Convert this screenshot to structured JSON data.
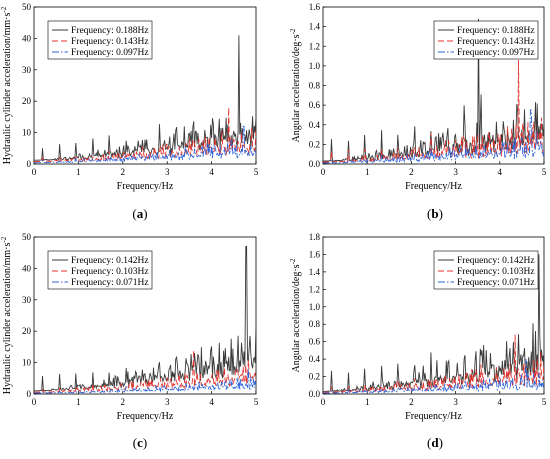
{
  "chart_data": [
    {
      "panel": "(a)",
      "panel_letter": "a",
      "type": "line",
      "xlabel": "Frequency/Hz",
      "ylabel": "Hydraulic cylinder acceleration/mm·s",
      "ylabel_sup": "-2",
      "xlim": [
        0,
        5
      ],
      "ylim": [
        0,
        50
      ],
      "xticks": [
        0,
        1,
        2,
        3,
        4,
        5
      ],
      "yticks": [
        0,
        10,
        20,
        30,
        40,
        50
      ],
      "legend_position": "top-left",
      "series": [
        {
          "name": "Frequency: 0.188Hz",
          "color": "#3a3a3a",
          "dash": "solid",
          "seed": 11,
          "base": 1.2,
          "growth": 7,
          "noise": 10,
          "peakAmp": 0.55,
          "peakX": 4.62,
          "peakY": 41
        },
        {
          "name": "Frequency: 0.143Hz",
          "color": "#e0312b",
          "dash": "6,3",
          "seed": 23,
          "base": 0.8,
          "growth": 4,
          "noise": 7,
          "peakAmp": 0.3,
          "peakX": 4.38,
          "peakY": 18
        },
        {
          "name": "Frequency: 0.097Hz",
          "color": "#2d63d8",
          "dash": "7,2,1.5,2",
          "seed": 37,
          "base": 0.4,
          "growth": 3,
          "noise": 5,
          "peakAmp": 0.2,
          "peakX": 4.72,
          "peakY": 12
        }
      ]
    },
    {
      "panel": "(b)",
      "panel_letter": "b",
      "type": "line",
      "xlabel": "Frequency/Hz",
      "ylabel": "Angular acceleration/deg·s",
      "ylabel_sup": "-2",
      "xlim": [
        0,
        5
      ],
      "ylim": [
        0,
        1.6
      ],
      "xticks": [
        0,
        1,
        2,
        3,
        4,
        5
      ],
      "yticks": [
        0.0,
        0.2,
        0.4,
        0.6,
        0.8,
        1.0,
        1.2,
        1.4,
        1.6
      ],
      "legend_position": "top-right",
      "series": [
        {
          "name": "Frequency: 0.188Hz",
          "color": "#3a3a3a",
          "dash": "solid",
          "seed": 53,
          "base": 0.03,
          "growth": 0.2,
          "noise": 0.45,
          "peakAmp": 1.0,
          "peakX": 3.52,
          "peakY": 1.48
        },
        {
          "name": "Frequency: 0.143Hz",
          "color": "#e0312b",
          "dash": "6,3",
          "seed": 61,
          "base": 0.02,
          "growth": 0.14,
          "noise": 0.3,
          "peakAmp": 0.55,
          "peakX": 4.42,
          "peakY": 1.06
        },
        {
          "name": "Frequency: 0.097Hz",
          "color": "#2d63d8",
          "dash": "7,2,1.5,2",
          "seed": 71,
          "base": 0.01,
          "growth": 0.1,
          "noise": 0.2,
          "peakAmp": 0.28,
          "peakX": 4.7,
          "peakY": 0.55
        }
      ]
    },
    {
      "panel": "(c)",
      "panel_letter": "c",
      "type": "line",
      "xlabel": "Frequency/Hz",
      "ylabel": "Hydraulic cylinder acceleration/mm·s",
      "ylabel_sup": "-2",
      "xlim": [
        0,
        5
      ],
      "ylim": [
        0,
        50
      ],
      "xticks": [
        0,
        1,
        2,
        3,
        4,
        5
      ],
      "yticks": [
        0,
        10,
        20,
        30,
        40,
        50
      ],
      "legend_position": "top-left",
      "series": [
        {
          "name": "Frequency: 0.142Hz",
          "color": "#3a3a3a",
          "dash": "solid",
          "seed": 83,
          "base": 1.0,
          "growth": 9,
          "noise": 11,
          "peakAmp": 0.45,
          "peakX": 4.78,
          "peakY": 47
        },
        {
          "name": "Frequency: 0.103Hz",
          "color": "#e0312b",
          "dash": "6,3",
          "seed": 97,
          "base": 0.6,
          "growth": 4,
          "noise": 6,
          "peakAmp": 0.25,
          "peakX": 3.6,
          "peakY": 14
        },
        {
          "name": "Frequency: 0.071Hz",
          "color": "#2d63d8",
          "dash": "7,2,1.5,2",
          "seed": 101,
          "base": 0.3,
          "growth": 2,
          "noise": 3,
          "peakAmp": 0.15,
          "peakX": 4.82,
          "peakY": 8
        }
      ]
    },
    {
      "panel": "(d)",
      "panel_letter": "d",
      "type": "line",
      "xlabel": "Frequency/Hz",
      "ylabel": "Angular acceleration/deg·s",
      "ylabel_sup": "-2",
      "xlim": [
        0,
        5
      ],
      "ylim": [
        0,
        1.8
      ],
      "xticks": [
        0,
        1,
        2,
        3,
        4,
        5
      ],
      "yticks": [
        0.0,
        0.2,
        0.4,
        0.6,
        0.8,
        1.0,
        1.2,
        1.4,
        1.6,
        1.8
      ],
      "legend_position": "top-right",
      "series": [
        {
          "name": "Frequency: 0.142Hz",
          "color": "#3a3a3a",
          "dash": "solid",
          "seed": 113,
          "base": 0.03,
          "growth": 0.25,
          "noise": 0.5,
          "peakAmp": 0.75,
          "peakX": 4.88,
          "peakY": 1.6
        },
        {
          "name": "Frequency: 0.103Hz",
          "color": "#e0312b",
          "dash": "6,3",
          "seed": 127,
          "base": 0.02,
          "growth": 0.12,
          "noise": 0.28,
          "peakAmp": 0.4,
          "peakX": 4.35,
          "peakY": 0.68
        },
        {
          "name": "Frequency: 0.071Hz",
          "color": "#2d63d8",
          "dash": "7,2,1.5,2",
          "seed": 131,
          "base": 0.01,
          "growth": 0.08,
          "noise": 0.16,
          "peakAmp": 0.22,
          "peakX": 4.6,
          "peakY": 0.4
        }
      ]
    }
  ]
}
